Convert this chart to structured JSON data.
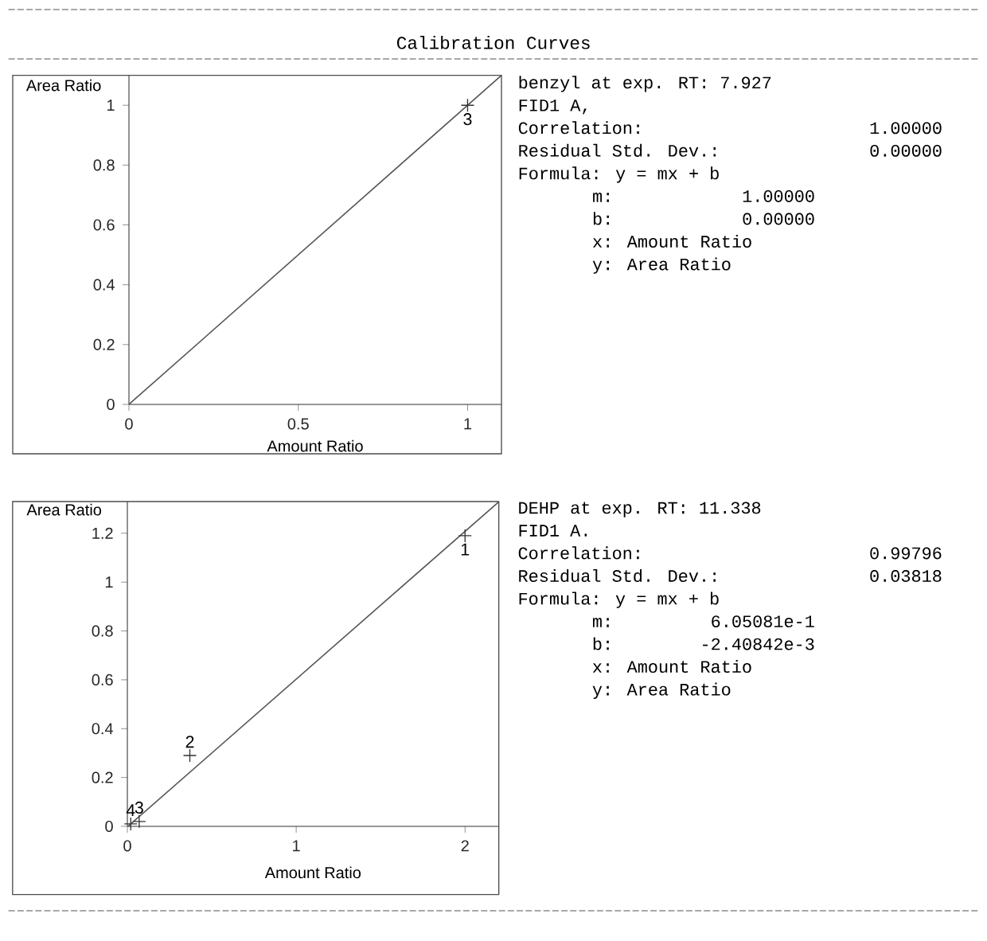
{
  "chart_data": [
    {
      "type": "scatter",
      "title": "Calibration Curves",
      "xlabel": "Amount Ratio",
      "ylabel": "Area Ratio",
      "xlim": [
        0,
        1.1
      ],
      "ylim": [
        0,
        1.1
      ],
      "xticks": [
        0,
        0.5,
        1
      ],
      "yticks": [
        0,
        0.2,
        0.4,
        0.6,
        0.8,
        1
      ],
      "marker": "cross",
      "line_style": "solid",
      "series": [
        {
          "color": "#333333",
          "x": [
            1
          ],
          "values": [
            1
          ]
        },
        {
          "type": "line",
          "color": "#555555",
          "marker": "none",
          "x": [
            0,
            1.1
          ],
          "values": [
            0,
            1.1
          ]
        }
      ],
      "annotations": [
        "benzyl at exp. RT: 7.927",
        "FID1 A,",
        "Correlation:",
        "1.00000",
        "Residual Std. Dev.:",
        "0.00000",
        "Formula: y = mx + b",
        "m:",
        "1.00000",
        "b:",
        "0.00000",
        "x: Amount Ratio",
        "y: Area Ratio",
        {
          "text": "3",
          "x": 1,
          "y": 1
        }
      ]
    },
    {
      "type": "scatter",
      "xlabel": "Amount Ratio",
      "ylabel": "Area Ratio",
      "xlim": [
        0,
        2.2
      ],
      "ylim": [
        0,
        1.33
      ],
      "xticks": [
        0,
        1,
        2
      ],
      "yticks": [
        0,
        0.2,
        0.4,
        0.6,
        0.8,
        1,
        1.2
      ],
      "marker": "cross",
      "line_style": "solid",
      "series": [
        {
          "color": "#333333",
          "x": [
            2,
            0.37,
            0.07,
            0.02
          ],
          "values": [
            1.19,
            0.29,
            0.02,
            0.01
          ]
        },
        {
          "type": "line",
          "color": "#555555",
          "marker": "none",
          "x": [
            0.004,
            2.2
          ],
          "values": [
            0,
            1.329
          ]
        }
      ],
      "annotations": [
        "DEHP at exp. RT: 11.338",
        "FID1 A.",
        "Correlation:",
        "0.99796",
        "Residual Std. Dev.:",
        "0.03818",
        "Formula: y = mx + b",
        "m:",
        "6.05081e-1",
        "b:",
        "-2.40842e-3",
        "x: Amount Ratio",
        "y: Area Ratio",
        {
          "text": "1",
          "x": 2,
          "y": 1.19
        },
        {
          "text": "2",
          "x": 0.37,
          "y": 0.29
        },
        {
          "text": "3",
          "x": 0.07,
          "y": 0.02
        },
        {
          "text": "4",
          "x": 0.02,
          "y": 0.01
        }
      ]
    }
  ]
}
